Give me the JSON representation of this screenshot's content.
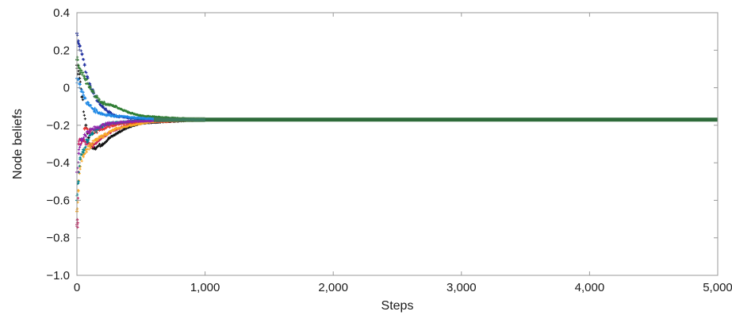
{
  "chart_data": {
    "type": "scatter",
    "title": "",
    "xlabel": "Steps",
    "ylabel": "Node beliefs",
    "xlim": [
      0,
      5000
    ],
    "ylim": [
      -1.0,
      0.4
    ],
    "xticks": [
      0,
      1000,
      2000,
      3000,
      4000,
      5000
    ],
    "xtick_labels": [
      "0",
      "1,000",
      "2,000",
      "3,000",
      "4,000",
      "5,000"
    ],
    "yticks": [
      0.4,
      0.2,
      0,
      -0.2,
      -0.4,
      -0.6,
      -0.8,
      -1.0
    ],
    "ytick_labels": [
      "0.4",
      "0.2",
      "0",
      "−0.2",
      "−0.4",
      "−0.6",
      "−0.8",
      "−1.0"
    ],
    "grid": false,
    "legend": "none",
    "consensus_value": -0.17,
    "series": [
      {
        "color": "#1f2fa0",
        "points": [
          [
            0,
            0.29
          ],
          [
            10,
            0.25
          ],
          [
            20,
            0.22
          ],
          [
            40,
            0.18
          ],
          [
            60,
            0.12
          ],
          [
            80,
            0.06
          ],
          [
            100,
            0.02
          ],
          [
            130,
            -0.03
          ],
          [
            160,
            -0.07
          ],
          [
            200,
            -0.1
          ],
          [
            250,
            -0.13
          ],
          [
            300,
            -0.15
          ],
          [
            400,
            -0.16
          ],
          [
            500,
            -0.17
          ],
          [
            700,
            -0.17
          ],
          [
            1000,
            -0.17
          ]
        ]
      },
      {
        "color": "#2e7d32",
        "points": [
          [
            0,
            0.15
          ],
          [
            10,
            0.12
          ],
          [
            30,
            0.08
          ],
          [
            60,
            0.05
          ],
          [
            100,
            0.0
          ],
          [
            150,
            -0.05
          ],
          [
            200,
            -0.08
          ],
          [
            300,
            -0.1
          ],
          [
            400,
            -0.13
          ],
          [
            500,
            -0.15
          ],
          [
            700,
            -0.16
          ],
          [
            1000,
            -0.17
          ]
        ]
      },
      {
        "color": "#111111",
        "points": [
          [
            0,
            0.12
          ],
          [
            20,
            0.05
          ],
          [
            40,
            -0.05
          ],
          [
            70,
            -0.2
          ],
          [
            100,
            -0.3
          ],
          [
            140,
            -0.32
          ],
          [
            200,
            -0.3
          ],
          [
            250,
            -0.27
          ],
          [
            320,
            -0.24
          ],
          [
            400,
            -0.21
          ],
          [
            500,
            -0.19
          ],
          [
            700,
            -0.18
          ],
          [
            1000,
            -0.17
          ]
        ]
      },
      {
        "color": "#c2185b",
        "points": [
          [
            0,
            -0.73
          ],
          [
            5,
            -0.72
          ],
          [
            15,
            -0.3
          ],
          [
            40,
            -0.28
          ],
          [
            80,
            -0.3
          ],
          [
            120,
            -0.31
          ],
          [
            180,
            -0.27
          ],
          [
            250,
            -0.24
          ],
          [
            350,
            -0.21
          ],
          [
            450,
            -0.19
          ],
          [
            600,
            -0.18
          ],
          [
            1000,
            -0.17
          ]
        ]
      },
      {
        "color": "#e53935",
        "points": [
          [
            60,
            -0.22
          ],
          [
            120,
            -0.24
          ],
          [
            200,
            -0.22
          ],
          [
            280,
            -0.2
          ],
          [
            350,
            -0.19
          ],
          [
            500,
            -0.18
          ],
          [
            700,
            -0.18
          ],
          [
            900,
            -0.17
          ],
          [
            1000,
            -0.17
          ]
        ]
      },
      {
        "color": "#f9a825",
        "points": [
          [
            0,
            -0.66
          ],
          [
            10,
            -0.55
          ],
          [
            25,
            -0.42
          ],
          [
            45,
            -0.36
          ],
          [
            70,
            -0.33
          ],
          [
            100,
            -0.31
          ],
          [
            150,
            -0.28
          ],
          [
            220,
            -0.25
          ],
          [
            300,
            -0.22
          ],
          [
            420,
            -0.2
          ],
          [
            600,
            -0.18
          ],
          [
            1000,
            -0.17
          ]
        ]
      },
      {
        "color": "#00838f",
        "points": [
          [
            0,
            -0.6
          ],
          [
            10,
            -0.5
          ],
          [
            25,
            -0.38
          ],
          [
            50,
            -0.33
          ],
          [
            80,
            -0.28
          ],
          [
            120,
            -0.24
          ],
          [
            180,
            -0.21
          ],
          [
            260,
            -0.19
          ],
          [
            400,
            -0.18
          ],
          [
            600,
            -0.17
          ],
          [
            1000,
            -0.17
          ]
        ]
      },
      {
        "color": "#8e24aa",
        "points": [
          [
            0,
            -0.45
          ],
          [
            15,
            -0.35
          ],
          [
            35,
            -0.28
          ],
          [
            60,
            -0.25
          ],
          [
            100,
            -0.23
          ],
          [
            160,
            -0.21
          ],
          [
            250,
            -0.19
          ],
          [
            400,
            -0.18
          ],
          [
            1000,
            -0.17
          ]
        ]
      },
      {
        "color": "#1e88e5",
        "points": [
          [
            0,
            0.05
          ],
          [
            20,
            0.02
          ],
          [
            50,
            -0.04
          ],
          [
            90,
            -0.09
          ],
          [
            140,
            -0.12
          ],
          [
            200,
            -0.14
          ],
          [
            300,
            -0.15
          ],
          [
            450,
            -0.16
          ],
          [
            700,
            -0.17
          ],
          [
            1000,
            -0.17
          ]
        ]
      }
    ]
  }
}
